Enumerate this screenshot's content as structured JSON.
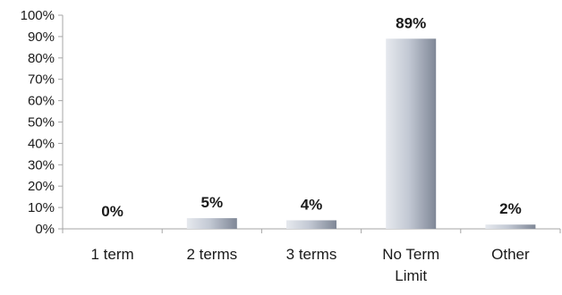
{
  "chart_data": {
    "type": "bar",
    "categories": [
      "1 term",
      "2 terms",
      "3 terms",
      "No Term Limit",
      "Other"
    ],
    "category_lines": [
      [
        "1 term"
      ],
      [
        "2 terms"
      ],
      [
        "3 terms"
      ],
      [
        "No Term",
        "Limit"
      ],
      [
        "Other"
      ]
    ],
    "values": [
      0,
      5,
      4,
      89,
      2
    ],
    "value_labels": [
      "0%",
      "5%",
      "4%",
      "89%",
      "2%"
    ],
    "ylim": [
      0,
      100
    ],
    "y_ticks": [
      0,
      10,
      20,
      30,
      40,
      50,
      60,
      70,
      80,
      90,
      100
    ],
    "y_tick_labels": [
      "0%",
      "10%",
      "20%",
      "30%",
      "40%",
      "50%",
      "60%",
      "70%",
      "80%",
      "90%",
      "100%"
    ],
    "title": "",
    "xlabel": "",
    "ylabel": "",
    "grid": false,
    "legend": "none",
    "colors": {
      "bar_light": "#e6e9ee",
      "bar_mid": "#c3c9d4",
      "bar_dark": "#7f8796",
      "axis": "#a6a6a6"
    }
  }
}
